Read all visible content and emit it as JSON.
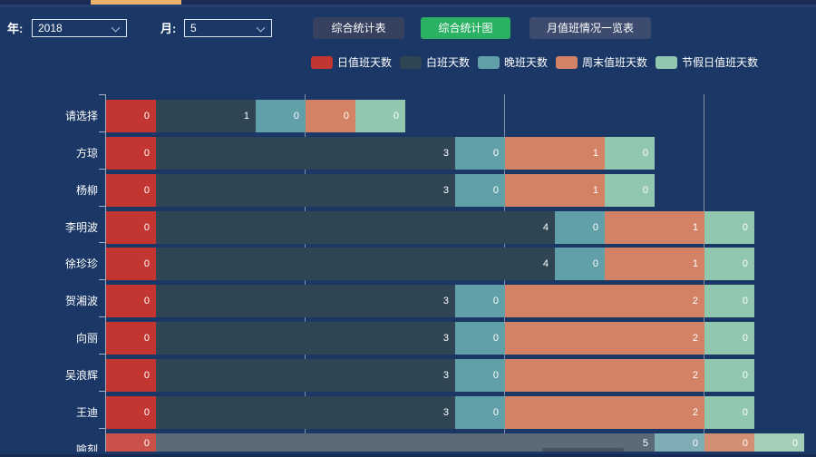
{
  "toolbar": {
    "year_label": "年:",
    "year_value": "2018",
    "month_label": "月:",
    "month_value": "5",
    "buttons": [
      {
        "label": "综合统计表",
        "active": false
      },
      {
        "label": "综合统计图",
        "active": true,
        "active_color": "#2bb163"
      },
      {
        "label": "月值班情况一览表",
        "active": false
      }
    ]
  },
  "chart_data": {
    "type": "bar",
    "orientation": "horizontal",
    "stacked": true,
    "legend_position": "top",
    "grid": true,
    "categories": [
      "请选择",
      "方琼",
      "杨柳",
      "李明波",
      "徐珍珍",
      "贺湘波",
      "向丽",
      "吴浪辉",
      "王迪",
      "喻刻"
    ],
    "series": [
      {
        "name": "日值班天数",
        "color": "#c23531",
        "color_faded": "#c95149",
        "values": [
          0,
          0,
          0,
          0,
          0,
          0,
          0,
          0,
          0,
          0
        ]
      },
      {
        "name": "白班天数",
        "color": "#2f4554",
        "color_faded": "#5a6a76",
        "values": [
          1,
          3,
          3,
          4,
          4,
          3,
          3,
          3,
          3,
          5
        ]
      },
      {
        "name": "晚班天数",
        "color": "#61a0a8",
        "color_faded": "#7fadb5",
        "values": [
          0,
          0,
          0,
          0,
          0,
          0,
          0,
          0,
          0,
          0
        ]
      },
      {
        "name": "周末值班天数",
        "color": "#d48265",
        "color_faded": "#d28f74",
        "values": [
          0,
          1,
          1,
          1,
          1,
          2,
          2,
          2,
          2,
          0
        ]
      },
      {
        "name": "节假日值班天数",
        "color": "#91c7ae",
        "color_faded": "#a4ceb7",
        "values": [
          0,
          0,
          0,
          0,
          0,
          0,
          0,
          0,
          0,
          0
        ]
      }
    ],
    "xlim": [
      0,
      7
    ],
    "gridline_values": [
      2,
      4,
      6
    ],
    "zero_value_rendered_as_units": 0.5,
    "value_labels": "inside-right",
    "faded_row_index": 9
  }
}
